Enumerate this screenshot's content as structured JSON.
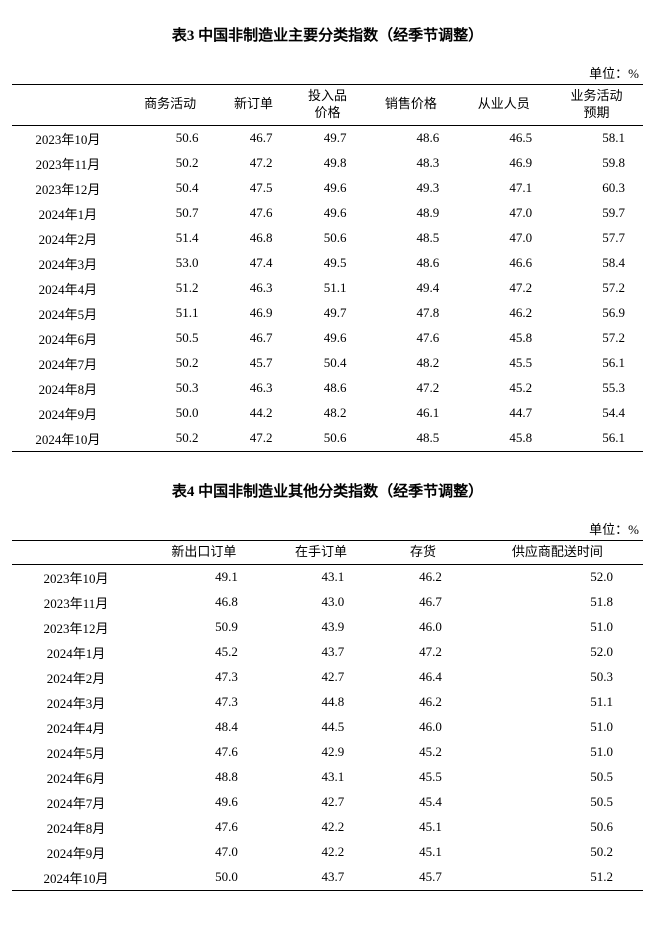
{
  "table3": {
    "title": "表3 中国非制造业主要分类指数（经季节调整）",
    "unit": "单位：%",
    "columns": [
      "",
      "商务活动",
      "新订单",
      "投入品\n价格",
      "销售价格",
      "从业人员",
      "业务活动\n预期"
    ],
    "rows": [
      {
        "label": "2023年10月",
        "v": [
          "50.6",
          "46.7",
          "49.7",
          "48.6",
          "46.5",
          "58.1"
        ]
      },
      {
        "label": "2023年11月",
        "v": [
          "50.2",
          "47.2",
          "49.8",
          "48.3",
          "46.9",
          "59.8"
        ]
      },
      {
        "label": "2023年12月",
        "v": [
          "50.4",
          "47.5",
          "49.6",
          "49.3",
          "47.1",
          "60.3"
        ]
      },
      {
        "label": "2024年1月",
        "v": [
          "50.7",
          "47.6",
          "49.6",
          "48.9",
          "47.0",
          "59.7"
        ]
      },
      {
        "label": "2024年2月",
        "v": [
          "51.4",
          "46.8",
          "50.6",
          "48.5",
          "47.0",
          "57.7"
        ]
      },
      {
        "label": "2024年3月",
        "v": [
          "53.0",
          "47.4",
          "49.5",
          "48.6",
          "46.6",
          "58.4"
        ]
      },
      {
        "label": "2024年4月",
        "v": [
          "51.2",
          "46.3",
          "51.1",
          "49.4",
          "47.2",
          "57.2"
        ]
      },
      {
        "label": "2024年5月",
        "v": [
          "51.1",
          "46.9",
          "49.7",
          "47.8",
          "46.2",
          "56.9"
        ]
      },
      {
        "label": "2024年6月",
        "v": [
          "50.5",
          "46.7",
          "49.6",
          "47.6",
          "45.8",
          "57.2"
        ]
      },
      {
        "label": "2024年7月",
        "v": [
          "50.2",
          "45.7",
          "50.4",
          "48.2",
          "45.5",
          "56.1"
        ]
      },
      {
        "label": "2024年8月",
        "v": [
          "50.3",
          "46.3",
          "48.6",
          "47.2",
          "45.2",
          "55.3"
        ]
      },
      {
        "label": "2024年9月",
        "v": [
          "50.0",
          "44.2",
          "48.2",
          "46.1",
          "44.7",
          "54.4"
        ]
      },
      {
        "label": "2024年10月",
        "v": [
          "50.2",
          "47.2",
          "50.6",
          "48.5",
          "45.8",
          "56.1"
        ]
      }
    ]
  },
  "table4": {
    "title": "表4 中国非制造业其他分类指数（经季节调整）",
    "unit": "单位：%",
    "columns": [
      "",
      "新出口订单",
      "在手订单",
      "存货",
      "供应商配送时间"
    ],
    "rows": [
      {
        "label": "2023年10月",
        "v": [
          "49.1",
          "43.1",
          "46.2",
          "52.0"
        ]
      },
      {
        "label": "2023年11月",
        "v": [
          "46.8",
          "43.0",
          "46.7",
          "51.8"
        ]
      },
      {
        "label": "2023年12月",
        "v": [
          "50.9",
          "43.9",
          "46.0",
          "51.0"
        ]
      },
      {
        "label": "2024年1月",
        "v": [
          "45.2",
          "43.7",
          "47.2",
          "52.0"
        ]
      },
      {
        "label": "2024年2月",
        "v": [
          "47.3",
          "42.7",
          "46.4",
          "50.3"
        ]
      },
      {
        "label": "2024年3月",
        "v": [
          "47.3",
          "44.8",
          "46.2",
          "51.1"
        ]
      },
      {
        "label": "2024年4月",
        "v": [
          "48.4",
          "44.5",
          "46.0",
          "51.0"
        ]
      },
      {
        "label": "2024年5月",
        "v": [
          "47.6",
          "42.9",
          "45.2",
          "51.0"
        ]
      },
      {
        "label": "2024年6月",
        "v": [
          "48.8",
          "43.1",
          "45.5",
          "50.5"
        ]
      },
      {
        "label": "2024年7月",
        "v": [
          "49.6",
          "42.7",
          "45.4",
          "50.5"
        ]
      },
      {
        "label": "2024年8月",
        "v": [
          "47.6",
          "42.2",
          "45.1",
          "50.6"
        ]
      },
      {
        "label": "2024年9月",
        "v": [
          "47.0",
          "42.2",
          "45.1",
          "50.2"
        ]
      },
      {
        "label": "2024年10月",
        "v": [
          "50.0",
          "43.7",
          "45.7",
          "51.2"
        ]
      }
    ]
  }
}
